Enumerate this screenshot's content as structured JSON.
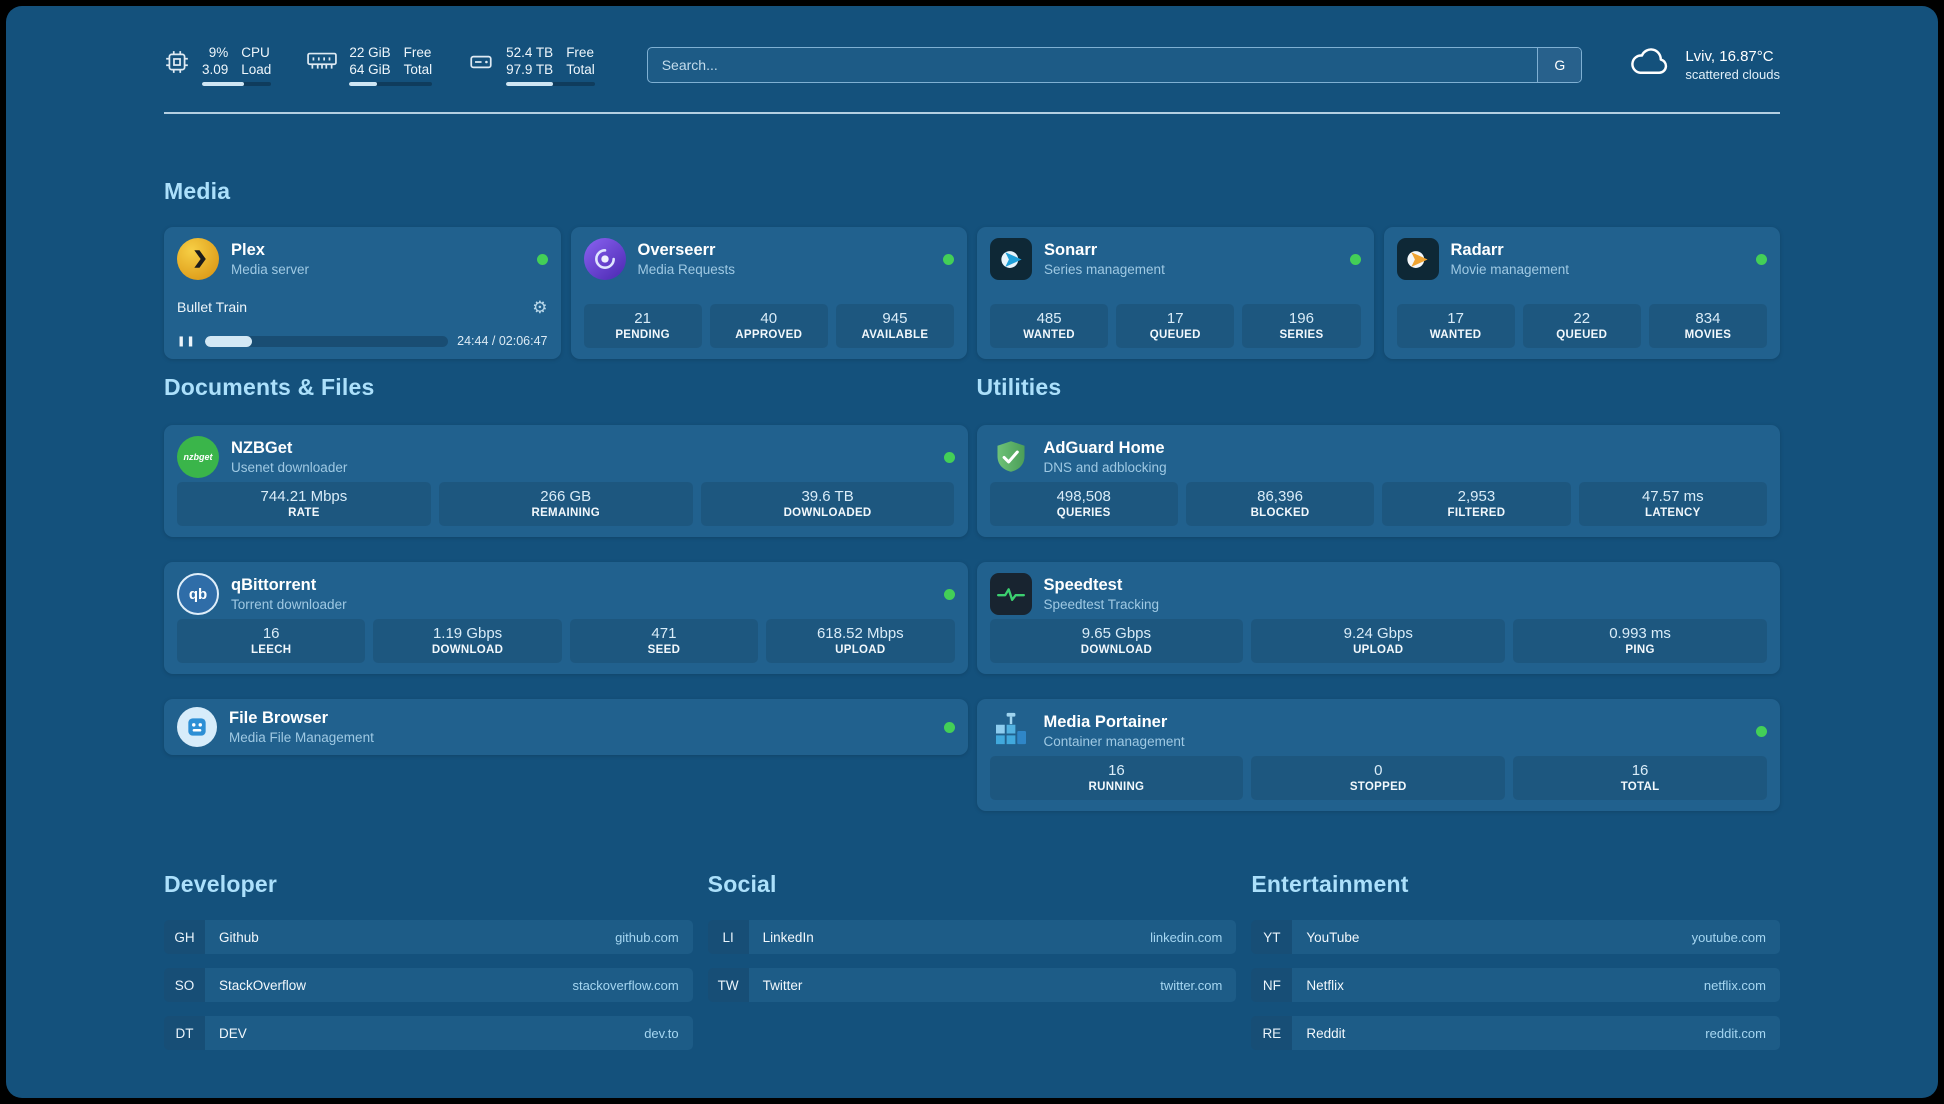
{
  "colors": {
    "background": "#14517c",
    "card": "#21618e",
    "tile": "rgba(0,0,0,0.10)",
    "section_title": "#ace0fb",
    "subtitle": "#9fc9e3",
    "stat_value": "#d9ecf8",
    "url_text": "#a5d6f1",
    "status_online": "#43cf57",
    "row_bg": "#1d5c87",
    "abbr_bg": "#174e76"
  },
  "topbar": {
    "cpu": {
      "value_top": "9%",
      "value_bottom": "3.09",
      "label_top": "CPU",
      "label_bottom": "Load",
      "progress": 60
    },
    "ram": {
      "value_top": "22 GiB",
      "value_bottom": "64 GiB",
      "label_top": "Free",
      "label_bottom": "Total",
      "progress": 34
    },
    "disk": {
      "value_top": "52.4 TB",
      "value_bottom": "97.9 TB",
      "label_top": "Free",
      "label_bottom": "Total",
      "progress": 53
    },
    "search": {
      "placeholder": "Search...",
      "engine_label": "G"
    },
    "weather": {
      "location": "Lviv, 16.87°C",
      "condition": "scattered clouds"
    }
  },
  "sections": {
    "media": {
      "title": "Media"
    },
    "documents": {
      "title": "Documents & Files"
    },
    "utilities": {
      "title": "Utilities"
    },
    "developer": {
      "title": "Developer"
    },
    "social": {
      "title": "Social"
    },
    "entertainment": {
      "title": "Entertainment"
    }
  },
  "apps": {
    "plex": {
      "name": "Plex",
      "subtitle": "Media server",
      "online": true,
      "now_playing": {
        "title": "Bullet Train",
        "time": "24:44 / 02:06:47",
        "progress_percent": 19.5
      }
    },
    "overseerr": {
      "name": "Overseerr",
      "subtitle": "Media Requests",
      "online": true,
      "stats": [
        {
          "value": "21",
          "label": "PENDING"
        },
        {
          "value": "40",
          "label": "APPROVED"
        },
        {
          "value": "945",
          "label": "AVAILABLE"
        }
      ]
    },
    "sonarr": {
      "name": "Sonarr",
      "subtitle": "Series management",
      "online": true,
      "stats": [
        {
          "value": "485",
          "label": "WANTED"
        },
        {
          "value": "17",
          "label": "QUEUED"
        },
        {
          "value": "196",
          "label": "SERIES"
        }
      ]
    },
    "radarr": {
      "name": "Radarr",
      "subtitle": "Movie management",
      "online": true,
      "stats": [
        {
          "value": "17",
          "label": "WANTED"
        },
        {
          "value": "22",
          "label": "QUEUED"
        },
        {
          "value": "834",
          "label": "MOVIES"
        }
      ]
    },
    "nzbget": {
      "name": "NZBGet",
      "subtitle": "Usenet downloader",
      "online": true,
      "icon_text": "nzbget",
      "stats": [
        {
          "value": "744.21 Mbps",
          "label": "RATE"
        },
        {
          "value": "266 GB",
          "label": "REMAINING"
        },
        {
          "value": "39.6 TB",
          "label": "DOWNLOADED"
        }
      ]
    },
    "qbittorrent": {
      "name": "qBittorrent",
      "subtitle": "Torrent downloader",
      "online": true,
      "icon_text": "qb",
      "stats": [
        {
          "value": "16",
          "label": "LEECH"
        },
        {
          "value": "1.19 Gbps",
          "label": "DOWNLOAD"
        },
        {
          "value": "471",
          "label": "SEED"
        },
        {
          "value": "618.52 Mbps",
          "label": "UPLOAD"
        }
      ]
    },
    "filebrowser": {
      "name": "File Browser",
      "subtitle": "Media File Management",
      "online": true
    },
    "adguard": {
      "name": "AdGuard Home",
      "subtitle": "DNS and adblocking",
      "stats": [
        {
          "value": "498,508",
          "label": "QUERIES"
        },
        {
          "value": "86,396",
          "label": "BLOCKED"
        },
        {
          "value": "2,953",
          "label": "FILTERED"
        },
        {
          "value": "47.57 ms",
          "label": "LATENCY"
        }
      ]
    },
    "speedtest": {
      "name": "Speedtest",
      "subtitle": "Speedtest Tracking",
      "stats": [
        {
          "value": "9.65 Gbps",
          "label": "DOWNLOAD"
        },
        {
          "value": "9.24 Gbps",
          "label": "UPLOAD"
        },
        {
          "value": "0.993 ms",
          "label": "PING"
        }
      ]
    },
    "portainer": {
      "name": "Media Portainer",
      "subtitle": "Container management",
      "online": true,
      "stats": [
        {
          "value": "16",
          "label": "RUNNING"
        },
        {
          "value": "0",
          "label": "STOPPED"
        },
        {
          "value": "16",
          "label": "TOTAL"
        }
      ]
    }
  },
  "bookmarks": {
    "developer": [
      {
        "abbr": "GH",
        "name": "Github",
        "url": "github.com"
      },
      {
        "abbr": "SO",
        "name": "StackOverflow",
        "url": "stackoverflow.com"
      },
      {
        "abbr": "DT",
        "name": "DEV",
        "url": "dev.to"
      }
    ],
    "social": [
      {
        "abbr": "LI",
        "name": "LinkedIn",
        "url": "linkedin.com"
      },
      {
        "abbr": "TW",
        "name": "Twitter",
        "url": "twitter.com"
      }
    ],
    "entertainment": [
      {
        "abbr": "YT",
        "name": "YouTube",
        "url": "youtube.com"
      },
      {
        "abbr": "NF",
        "name": "Netflix",
        "url": "netflix.com"
      },
      {
        "abbr": "RE",
        "name": "Reddit",
        "url": "reddit.com"
      }
    ]
  }
}
